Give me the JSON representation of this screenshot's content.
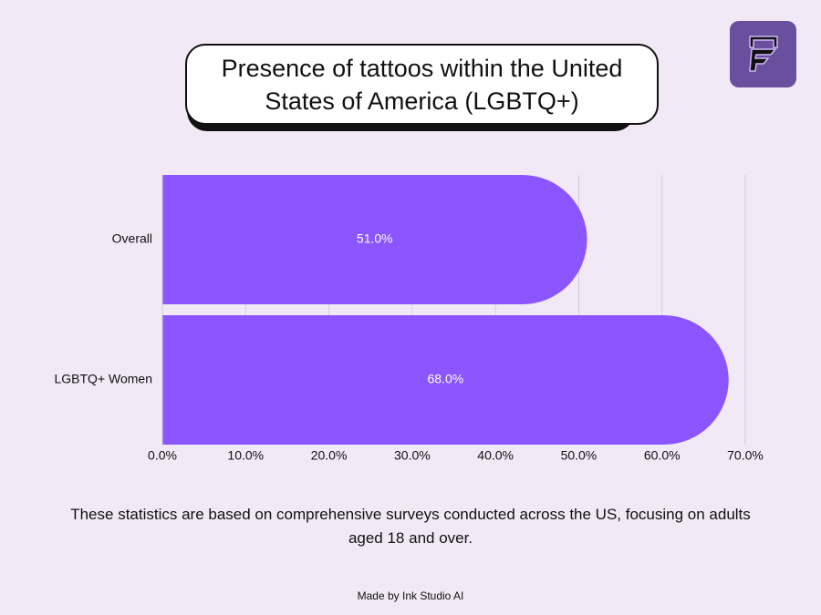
{
  "chart_data": {
    "type": "bar",
    "orientation": "horizontal",
    "title": "Presence of tattoos within the United States of America (LGBTQ+)",
    "categories": [
      "Overall",
      "LGBTQ+ Women"
    ],
    "values": [
      51,
      68
    ],
    "value_labels": [
      "51.0%",
      "68.0%"
    ],
    "color": "#8b55ff",
    "xlim": [
      0,
      70
    ],
    "xticks": [
      {
        "value": 0,
        "label": "0.0%"
      },
      {
        "value": 10,
        "label": "10.0%"
      },
      {
        "value": 20,
        "label": "20.0%"
      },
      {
        "value": 30,
        "label": "30.0%"
      },
      {
        "value": 40,
        "label": "40.0%"
      },
      {
        "value": 50,
        "label": "50.0%"
      },
      {
        "value": 60,
        "label": "60.0%"
      },
      {
        "value": 70,
        "label": "70.0%"
      }
    ],
    "grid": true,
    "footnote": "These statistics are based on comprehensive surveys conducted across the US, focusing on adults aged 18 and over.",
    "credit": "Made by Ink Studio AI"
  }
}
